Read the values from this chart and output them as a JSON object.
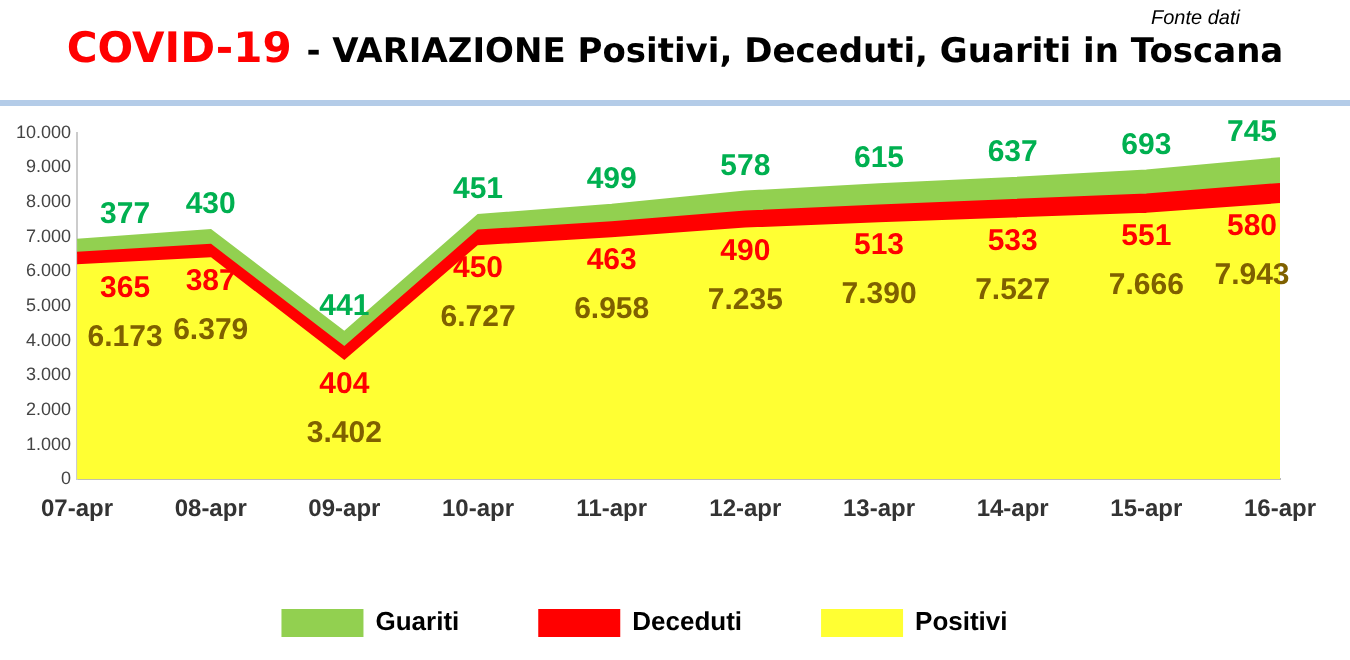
{
  "chart_data": {
    "type": "area",
    "stacked": true,
    "title": "COVID-19",
    "subtitle": "- VARIAZIONE Positivi, Deceduti, Guariti in Toscana",
    "annotations": [
      "Fonte dati"
    ],
    "categories": [
      "07-apr",
      "08-apr",
      "09-apr",
      "10-apr",
      "11-apr",
      "12-apr",
      "13-apr",
      "14-apr",
      "15-apr",
      "16-apr"
    ],
    "series": [
      {
        "name": "Positivi",
        "color": "#ffff33",
        "values": [
          6173,
          6379,
          3402,
          6727,
          6958,
          7235,
          7390,
          7527,
          7666,
          7943
        ],
        "value_labels": [
          "6.173",
          "6.379",
          "3.402",
          "6.727",
          "6.958",
          "7.235",
          "7.390",
          "7.527",
          "7.666",
          "7.943"
        ]
      },
      {
        "name": "Deceduti",
        "color": "#ff0000",
        "values": [
          365,
          387,
          404,
          450,
          463,
          490,
          513,
          533,
          551,
          580
        ]
      },
      {
        "name": "Guariti",
        "color": "#92d050",
        "values": [
          377,
          430,
          441,
          451,
          499,
          578,
          615,
          637,
          693,
          745
        ]
      }
    ],
    "data_labels": true,
    "ylim": [
      0,
      10000
    ],
    "yticks": [
      0,
      {
        "value": 1000,
        "label": "1.000"
      },
      {
        "value": 2000,
        "label": "2.000"
      },
      {
        "value": 3000,
        "label": "3.000"
      },
      {
        "value": 4000,
        "label": "4.000"
      },
      {
        "value": 5000,
        "label": "5.000"
      },
      {
        "value": 6000,
        "label": "6.000"
      },
      {
        "value": 7000,
        "label": "7.000"
      },
      {
        "value": 8000,
        "label": "8.000"
      },
      {
        "value": 9000,
        "label": "9.000"
      },
      {
        "value": 10000,
        "label": "10.000"
      }
    ],
    "grid": false,
    "legend": "bottom"
  }
}
